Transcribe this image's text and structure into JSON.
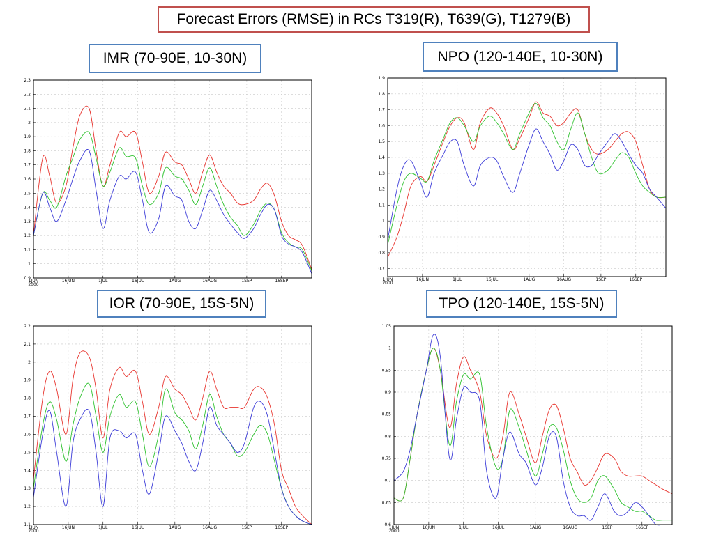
{
  "header": {
    "title": "Forecast Errors (RMSE) in RCs T319(R), T639(G), T1279(B)"
  },
  "colors": {
    "R": "#e8352f",
    "G": "#2fc22f",
    "B": "#3c3cd8",
    "grid": "#c8c8c8",
    "box_title": "#c0504d",
    "box_panel": "#4f81bd"
  },
  "chart_data": [
    {
      "type": "line",
      "title": "IMR (70-90E, 10-30N)",
      "x_ticks": [
        "1JUN",
        "16JUN",
        "1JUL",
        "16JUL",
        "1AUG",
        "16AUG",
        "1SEP",
        "16SEP"
      ],
      "x_tick_days": [
        0,
        15,
        30,
        45,
        61,
        76,
        92,
        107
      ],
      "year_label": "2000",
      "x_range": [
        0,
        120
      ],
      "y_ticks": [
        "0.9",
        "1",
        "1.1",
        "1.2",
        "1.3",
        "1.4",
        "1.5",
        "1.6",
        "1.7",
        "1.8",
        "1.9",
        "2",
        "2.1",
        "2.2",
        "2.3"
      ],
      "ylim": [
        0.9,
        2.3
      ],
      "x": [
        0,
        4,
        7,
        10,
        14,
        17,
        20,
        24,
        27,
        30,
        33,
        37,
        40,
        44,
        47,
        50,
        54,
        57,
        61,
        64,
        67,
        70,
        73,
        76,
        79,
        82,
        85,
        88,
        91,
        95,
        98,
        101,
        104,
        107,
        110,
        113,
        116,
        120
      ],
      "series": [
        {
          "name": "T319",
          "color_key": "R",
          "values": [
            1.2,
            1.75,
            1.62,
            1.43,
            1.55,
            1.82,
            2.05,
            2.1,
            1.8,
            1.55,
            1.7,
            1.93,
            1.9,
            1.93,
            1.72,
            1.5,
            1.62,
            1.79,
            1.72,
            1.7,
            1.6,
            1.5,
            1.65,
            1.77,
            1.65,
            1.55,
            1.5,
            1.43,
            1.42,
            1.45,
            1.53,
            1.57,
            1.48,
            1.3,
            1.2,
            1.17,
            1.13,
            0.96
          ]
        },
        {
          "name": "T639",
          "color_key": "G",
          "values": [
            1.2,
            1.5,
            1.45,
            1.4,
            1.62,
            1.75,
            1.88,
            1.93,
            1.75,
            1.55,
            1.65,
            1.82,
            1.76,
            1.75,
            1.55,
            1.42,
            1.5,
            1.68,
            1.62,
            1.6,
            1.52,
            1.42,
            1.55,
            1.68,
            1.55,
            1.42,
            1.33,
            1.27,
            1.2,
            1.28,
            1.38,
            1.43,
            1.38,
            1.22,
            1.15,
            1.12,
            1.1,
            0.95
          ]
        },
        {
          "name": "T1279",
          "color_key": "B",
          "values": [
            1.2,
            1.5,
            1.4,
            1.3,
            1.45,
            1.6,
            1.73,
            1.8,
            1.52,
            1.25,
            1.45,
            1.62,
            1.6,
            1.65,
            1.45,
            1.22,
            1.32,
            1.55,
            1.48,
            1.45,
            1.3,
            1.25,
            1.38,
            1.52,
            1.45,
            1.35,
            1.28,
            1.22,
            1.18,
            1.25,
            1.35,
            1.42,
            1.38,
            1.2,
            1.14,
            1.12,
            1.08,
            0.93
          ]
        }
      ]
    },
    {
      "type": "line",
      "title": "NPO (120-140E, 10-30N)",
      "x_ticks": [
        "1JUN",
        "16JUN",
        "1JUL",
        "16JUL",
        "1AUG",
        "16AUG",
        "1SEP",
        "16SEP"
      ],
      "x_tick_days": [
        0,
        15,
        30,
        45,
        61,
        76,
        92,
        107
      ],
      "year_label": "2000",
      "x_range": [
        0,
        120
      ],
      "y_ticks": [
        "0.7",
        "0.8",
        "0.9",
        "1",
        "1.1",
        "1.2",
        "1.3",
        "1.4",
        "1.5",
        "1.6",
        "1.7",
        "1.8",
        "1.9"
      ],
      "ylim": [
        0.65,
        1.9
      ],
      "x": [
        0,
        4,
        7,
        10,
        14,
        17,
        20,
        24,
        27,
        30,
        33,
        37,
        40,
        44,
        47,
        50,
        54,
        57,
        61,
        64,
        67,
        70,
        73,
        76,
        79,
        82,
        85,
        88,
        91,
        95,
        98,
        101,
        104,
        107,
        110,
        113,
        116,
        120
      ],
      "series": [
        {
          "name": "T319",
          "color_key": "R",
          "values": [
            0.77,
            0.9,
            1.05,
            1.22,
            1.28,
            1.25,
            1.35,
            1.5,
            1.6,
            1.65,
            1.62,
            1.45,
            1.62,
            1.71,
            1.68,
            1.6,
            1.45,
            1.52,
            1.65,
            1.75,
            1.68,
            1.66,
            1.6,
            1.62,
            1.68,
            1.7,
            1.55,
            1.45,
            1.42,
            1.45,
            1.5,
            1.55,
            1.56,
            1.5,
            1.35,
            1.2,
            1.15,
            1.15
          ]
        },
        {
          "name": "T639",
          "color_key": "G",
          "values": [
            0.85,
            1.1,
            1.25,
            1.3,
            1.27,
            1.25,
            1.38,
            1.52,
            1.62,
            1.65,
            1.6,
            1.5,
            1.6,
            1.66,
            1.62,
            1.55,
            1.45,
            1.55,
            1.68,
            1.74,
            1.65,
            1.6,
            1.5,
            1.45,
            1.58,
            1.68,
            1.55,
            1.4,
            1.3,
            1.32,
            1.38,
            1.43,
            1.4,
            1.3,
            1.22,
            1.18,
            1.15,
            1.15
          ]
        },
        {
          "name": "T1279",
          "color_key": "B",
          "values": [
            0.88,
            1.2,
            1.35,
            1.38,
            1.25,
            1.15,
            1.3,
            1.42,
            1.5,
            1.5,
            1.35,
            1.22,
            1.35,
            1.4,
            1.38,
            1.28,
            1.18,
            1.3,
            1.48,
            1.58,
            1.5,
            1.42,
            1.32,
            1.38,
            1.48,
            1.45,
            1.35,
            1.35,
            1.42,
            1.5,
            1.55,
            1.5,
            1.42,
            1.35,
            1.3,
            1.2,
            1.15,
            1.08
          ]
        }
      ]
    },
    {
      "type": "line",
      "title": "IOR (70-90E, 15S-5N)",
      "x_ticks": [
        "1JUN",
        "16JUN",
        "1JUL",
        "16JUL",
        "1AUG",
        "16AUG",
        "1SEP",
        "16SEP"
      ],
      "x_tick_days": [
        0,
        15,
        30,
        45,
        61,
        76,
        92,
        107
      ],
      "year_label": "2000",
      "x_range": [
        0,
        120
      ],
      "y_ticks": [
        "1.1",
        "1.2",
        "1.3",
        "1.4",
        "1.5",
        "1.6",
        "1.7",
        "1.8",
        "1.9",
        "2",
        "2.1",
        "2.2"
      ],
      "ylim": [
        1.1,
        2.2
      ],
      "x": [
        0,
        4,
        7,
        10,
        14,
        17,
        20,
        24,
        27,
        30,
        33,
        37,
        40,
        44,
        47,
        50,
        54,
        57,
        61,
        64,
        67,
        70,
        73,
        76,
        79,
        82,
        85,
        88,
        91,
        95,
        98,
        101,
        104,
        107,
        110,
        113,
        116,
        120
      ],
      "series": [
        {
          "name": "T319",
          "color_key": "R",
          "values": [
            1.35,
            1.8,
            1.95,
            1.85,
            1.6,
            1.9,
            2.05,
            2.03,
            1.85,
            1.58,
            1.85,
            1.97,
            1.92,
            1.95,
            1.78,
            1.6,
            1.75,
            1.92,
            1.85,
            1.82,
            1.75,
            1.68,
            1.8,
            1.95,
            1.85,
            1.75,
            1.75,
            1.75,
            1.75,
            1.85,
            1.86,
            1.8,
            1.65,
            1.4,
            1.3,
            1.2,
            1.15,
            1.1
          ]
        },
        {
          "name": "T639",
          "color_key": "G",
          "values": [
            1.3,
            1.65,
            1.78,
            1.68,
            1.45,
            1.65,
            1.8,
            1.88,
            1.7,
            1.5,
            1.7,
            1.82,
            1.75,
            1.78,
            1.6,
            1.42,
            1.6,
            1.85,
            1.72,
            1.68,
            1.62,
            1.52,
            1.65,
            1.82,
            1.7,
            1.6,
            1.55,
            1.48,
            1.5,
            1.6,
            1.65,
            1.6,
            1.45,
            1.3,
            1.2,
            1.15,
            1.12,
            1.1
          ]
        },
        {
          "name": "T1279",
          "color_key": "B",
          "values": [
            1.25,
            1.6,
            1.73,
            1.5,
            1.2,
            1.55,
            1.68,
            1.73,
            1.5,
            1.2,
            1.58,
            1.62,
            1.58,
            1.6,
            1.4,
            1.27,
            1.5,
            1.7,
            1.62,
            1.55,
            1.45,
            1.4,
            1.55,
            1.75,
            1.65,
            1.6,
            1.55,
            1.5,
            1.55,
            1.75,
            1.78,
            1.7,
            1.5,
            1.3,
            1.2,
            1.15,
            1.12,
            1.1
          ]
        }
      ]
    },
    {
      "type": "line",
      "title": "TPO (120-140E, 15S-5N)",
      "x_ticks": [
        "1JUN",
        "16JUN",
        "1JUL",
        "16JUL",
        "1AUG",
        "16AUG",
        "1SEP",
        "16SEP"
      ],
      "x_tick_days": [
        0,
        15,
        30,
        45,
        61,
        76,
        92,
        107
      ],
      "year_label": "2000",
      "x_range": [
        0,
        120
      ],
      "y_ticks": [
        "0.6",
        "0.65",
        "0.7",
        "0.75",
        "0.8",
        "0.85",
        "0.9",
        "0.95",
        "1",
        "1.05"
      ],
      "ylim": [
        0.6,
        1.05
      ],
      "x": [
        0,
        4,
        7,
        10,
        14,
        17,
        20,
        24,
        27,
        30,
        33,
        37,
        40,
        44,
        47,
        50,
        54,
        57,
        61,
        64,
        67,
        70,
        73,
        76,
        79,
        82,
        85,
        88,
        91,
        95,
        98,
        101,
        104,
        107,
        110,
        113,
        116,
        120
      ],
      "series": [
        {
          "name": "T319",
          "color_key": "R",
          "values": [
            0.66,
            0.66,
            0.75,
            0.85,
            0.95,
            1.0,
            0.95,
            0.82,
            0.92,
            0.98,
            0.95,
            0.9,
            0.8,
            0.75,
            0.8,
            0.9,
            0.85,
            0.8,
            0.74,
            0.8,
            0.86,
            0.87,
            0.82,
            0.75,
            0.72,
            0.69,
            0.7,
            0.73,
            0.76,
            0.75,
            0.72,
            0.71,
            0.71,
            0.71,
            0.7,
            0.69,
            0.68,
            0.67
          ]
        },
        {
          "name": "T639",
          "color_key": "G",
          "values": [
            0.66,
            0.66,
            0.75,
            0.85,
            0.95,
            1.0,
            0.95,
            0.78,
            0.88,
            0.94,
            0.93,
            0.94,
            0.82,
            0.73,
            0.75,
            0.86,
            0.82,
            0.77,
            0.71,
            0.76,
            0.82,
            0.82,
            0.77,
            0.7,
            0.66,
            0.65,
            0.66,
            0.7,
            0.71,
            0.68,
            0.65,
            0.64,
            0.63,
            0.63,
            0.62,
            0.61,
            0.61,
            0.61
          ]
        },
        {
          "name": "T1279",
          "color_key": "B",
          "values": [
            0.7,
            0.72,
            0.77,
            0.85,
            0.95,
            1.03,
            0.98,
            0.75,
            0.84,
            0.91,
            0.9,
            0.88,
            0.72,
            0.66,
            0.75,
            0.81,
            0.76,
            0.74,
            0.69,
            0.73,
            0.8,
            0.8,
            0.7,
            0.64,
            0.62,
            0.62,
            0.61,
            0.64,
            0.67,
            0.63,
            0.62,
            0.63,
            0.65,
            0.64,
            0.62,
            0.6,
            0.6,
            0.6
          ]
        }
      ]
    }
  ]
}
